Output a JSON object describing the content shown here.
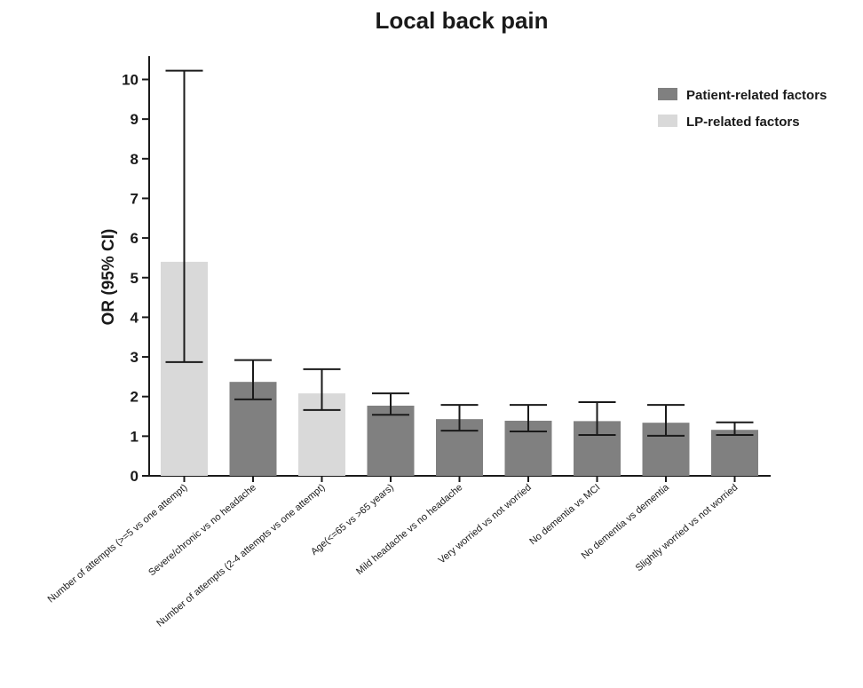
{
  "chart_data": {
    "type": "bar",
    "title": "Local back pain",
    "xlabel": "",
    "ylabel": "OR (95% CI)",
    "ylim": [
      0,
      10.5
    ],
    "yticks": [
      0,
      1,
      2,
      3,
      4,
      5,
      6,
      7,
      8,
      9,
      10
    ],
    "grid": false,
    "legend_position": "top-right",
    "groups": [
      {
        "name": "Patient-related factors",
        "color": "#808080"
      },
      {
        "name": "LP-related factors",
        "color": "#d9d9d9"
      }
    ],
    "categories": [
      "Number of attempts (>=5 vs one attempt)",
      "Severe/chronic vs no headache",
      "Number of attempts (2-4 attempts vs one attempt)",
      "Age(<=65 vs >65 years)",
      "Mild headache vs no headache",
      "Very worried vs not worried",
      "No dementia vs MCI",
      "No dementia vs dementia",
      "Slightly worried vs not worried"
    ],
    "values": [
      5.4,
      2.37,
      2.08,
      1.77,
      1.43,
      1.39,
      1.38,
      1.34,
      1.16
    ],
    "ci_lower": [
      2.87,
      1.93,
      1.66,
      1.54,
      1.14,
      1.12,
      1.03,
      1.01,
      1.03
    ],
    "ci_upper": [
      10.22,
      2.92,
      2.69,
      2.08,
      1.79,
      1.79,
      1.86,
      1.79,
      1.35
    ],
    "group_index": [
      1,
      0,
      1,
      0,
      0,
      0,
      0,
      0,
      0
    ]
  }
}
